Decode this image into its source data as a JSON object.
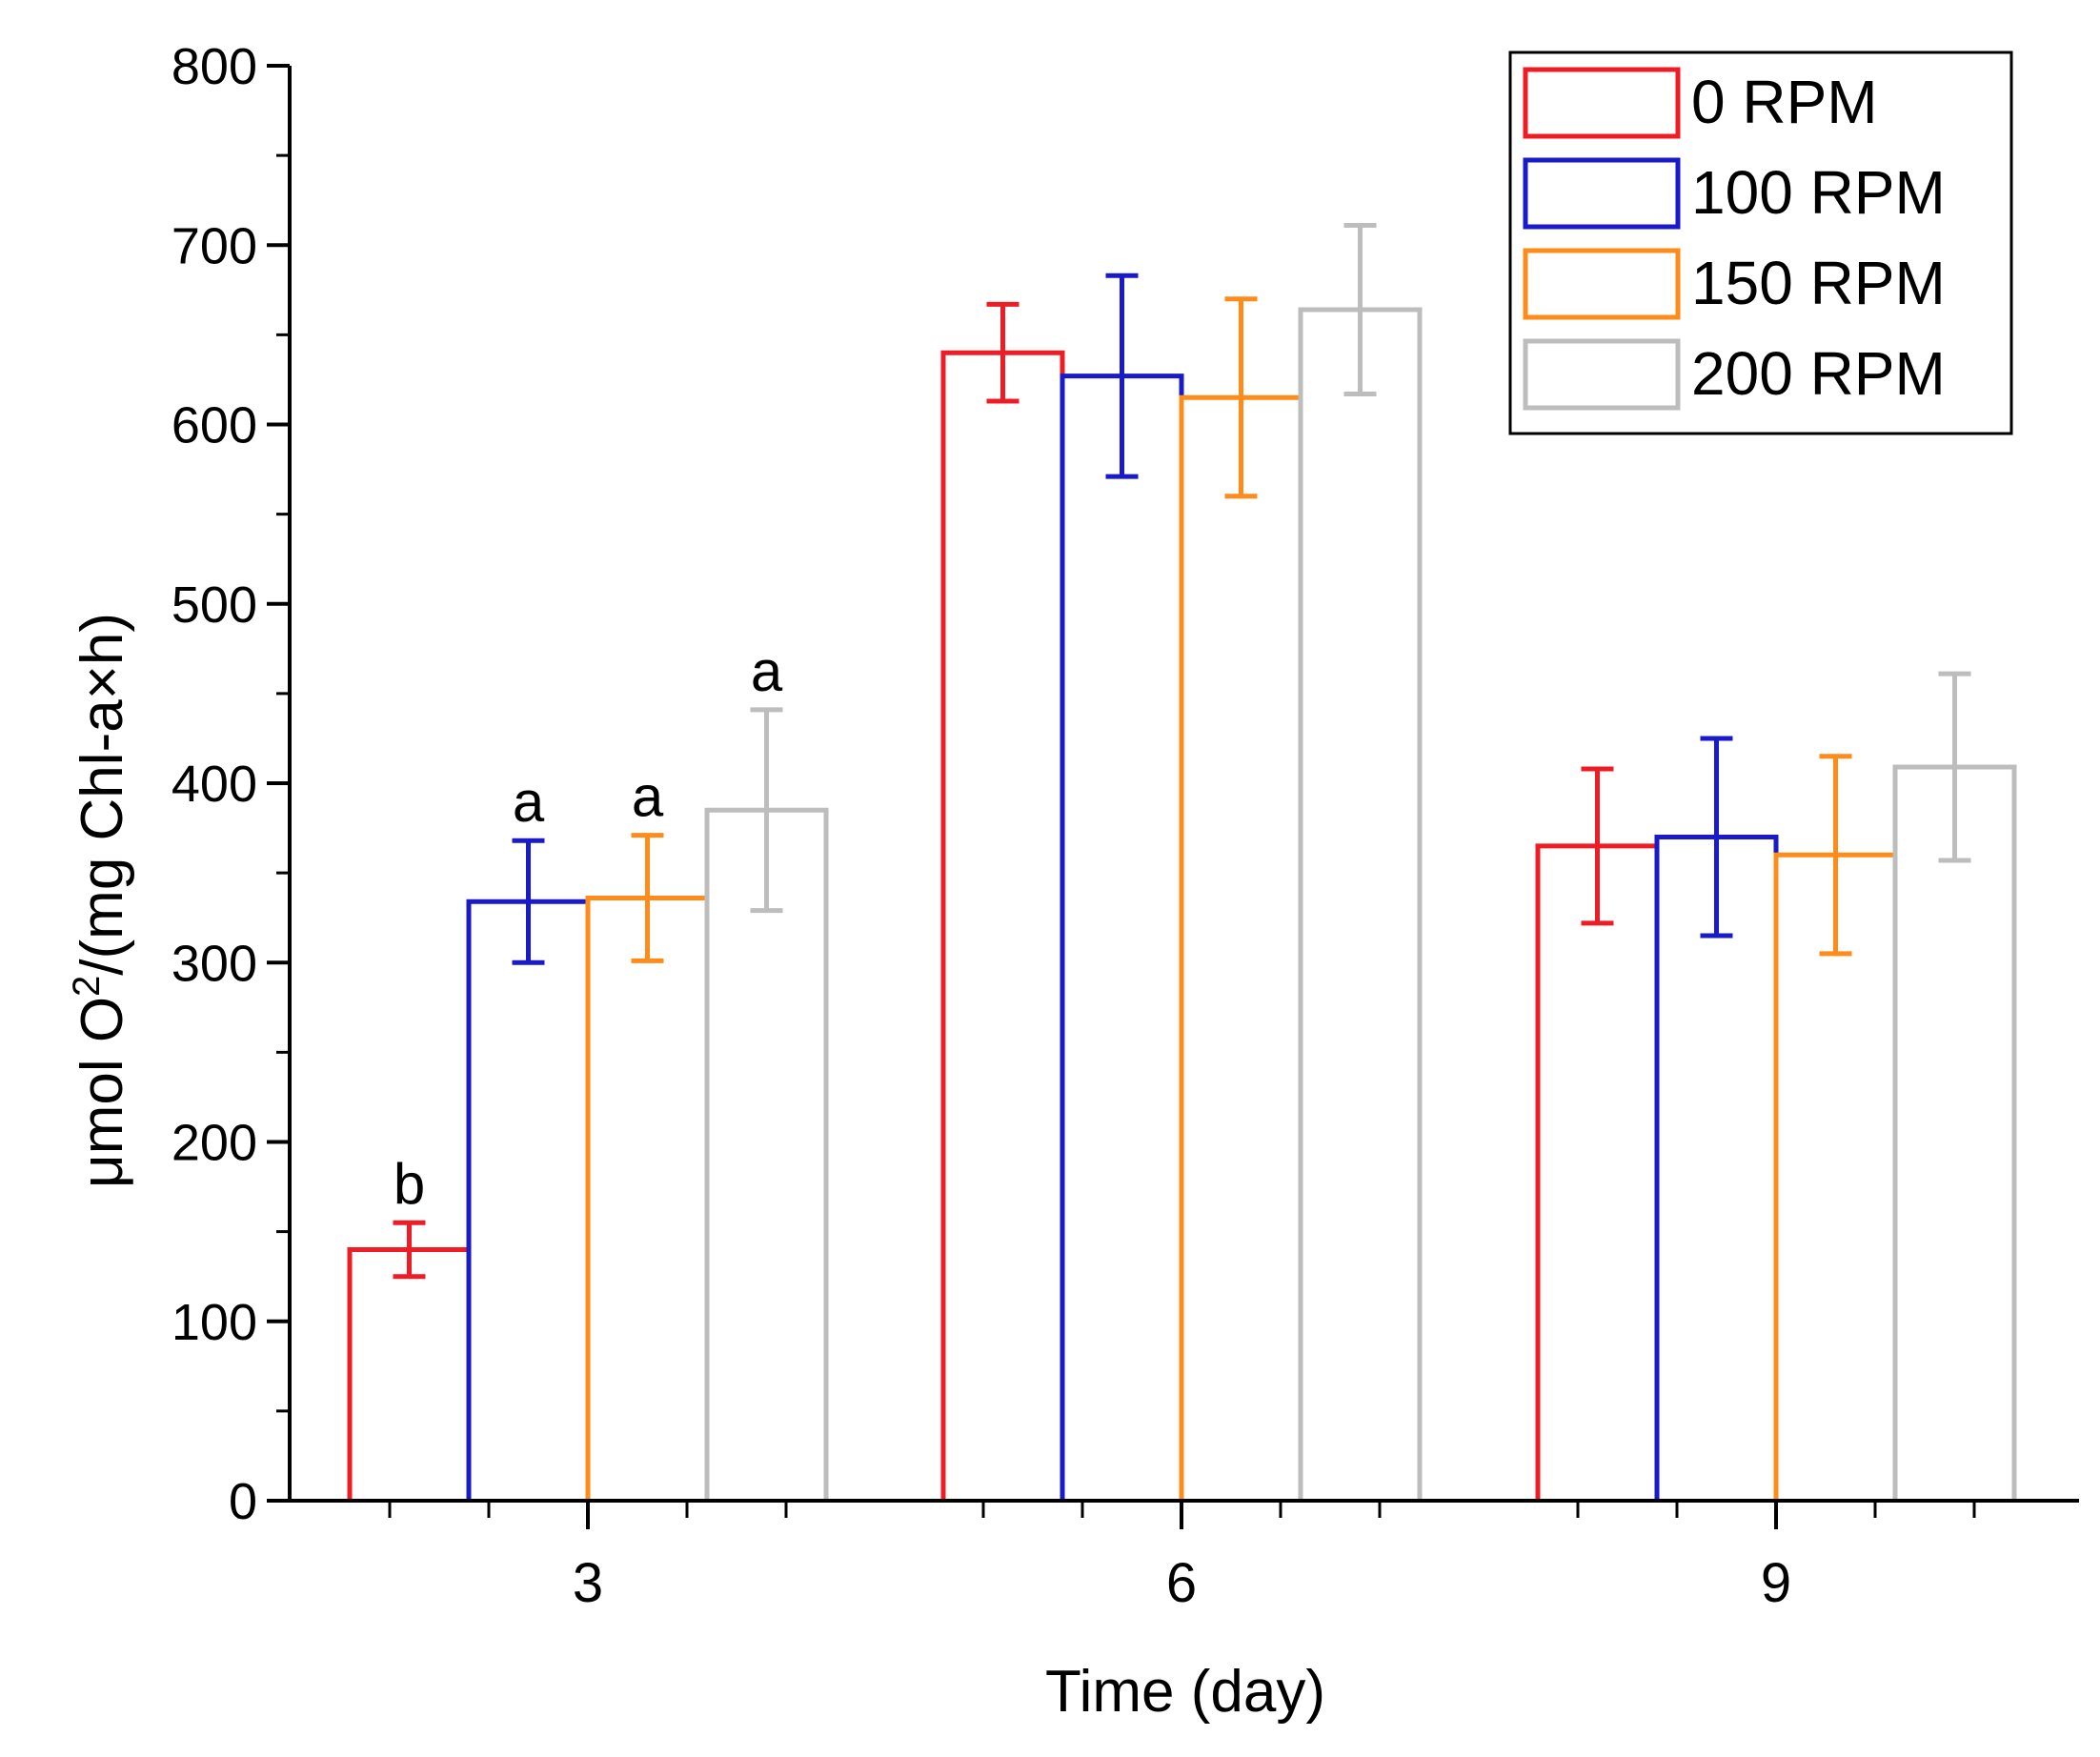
{
  "chart_data": {
    "type": "bar",
    "title": "",
    "xlabel": "Time (day)",
    "ylabel_parts": {
      "before": "μmol O",
      "sup": "2",
      "after": "/(mg Chl-a×h)"
    },
    "ylim": [
      0,
      800
    ],
    "y_ticks": [
      "0",
      "100",
      "200",
      "300",
      "400",
      "500",
      "600",
      "700",
      "800"
    ],
    "categories": [
      "3",
      "6",
      "9"
    ],
    "series": [
      {
        "name": "0 RPM",
        "color": "#ee1c24",
        "values": [
          140,
          640,
          365
        ],
        "errors": [
          15,
          27,
          43
        ],
        "labels": [
          "b",
          "",
          ""
        ]
      },
      {
        "name": "100 RPM",
        "color": "#1a1ac8",
        "values": [
          334,
          627,
          370
        ],
        "errors": [
          34,
          56,
          55
        ],
        "labels": [
          "a",
          "",
          ""
        ]
      },
      {
        "name": "150 RPM",
        "color": "#ff8c1a",
        "values": [
          336,
          615,
          360
        ],
        "errors": [
          35,
          55,
          55
        ],
        "labels": [
          "a",
          "",
          ""
        ]
      },
      {
        "name": "200 RPM",
        "color": "#bdbdbd",
        "values": [
          385,
          664,
          409
        ],
        "errors": [
          56,
          47,
          52
        ],
        "labels": [
          "a",
          "",
          ""
        ]
      }
    ],
    "legend_position": "top-right"
  }
}
